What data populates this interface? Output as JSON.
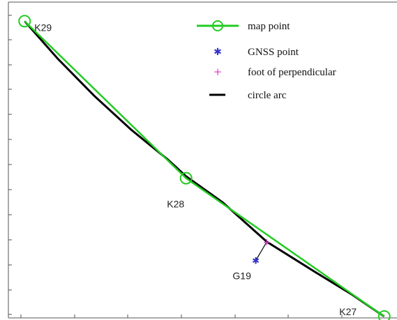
{
  "chart_data": {
    "type": "line",
    "title": "",
    "xlabel": "",
    "ylabel": "",
    "grid": false,
    "legend_position": "top-right",
    "xlim": [
      0,
      100
    ],
    "ylim": [
      0,
      80
    ],
    "series": [
      {
        "name": "map point",
        "color": "#22cc22",
        "marker": "circle",
        "points": [
          {
            "x": 1,
            "y": 79,
            "label": "K29"
          },
          {
            "x": 45,
            "y": 37,
            "label": "K28"
          },
          {
            "x": 99,
            "y": 0,
            "label": "K27"
          }
        ]
      },
      {
        "name": "GNSS point",
        "color": "#3333cc",
        "marker": "star",
        "points": [
          {
            "x": 64,
            "y": 15,
            "label": "G19"
          }
        ]
      },
      {
        "name": "foot of perpendicular",
        "color": "#dd44cc",
        "marker": "plus",
        "points": [
          {
            "x": 67,
            "y": 20
          }
        ]
      },
      {
        "name": "circle arc",
        "color": "#000000",
        "marker": "none",
        "points": [
          {
            "x": 1,
            "y": 79
          },
          {
            "x": 10,
            "y": 69
          },
          {
            "x": 20,
            "y": 59
          },
          {
            "x": 30,
            "y": 50
          },
          {
            "x": 40,
            "y": 42
          },
          {
            "x": 45,
            "y": 37.5
          },
          {
            "x": 55,
            "y": 30.5
          },
          {
            "x": 67,
            "y": 20
          },
          {
            "x": 80,
            "y": 12
          },
          {
            "x": 90,
            "y": 6
          },
          {
            "x": 99,
            "y": 0
          }
        ]
      }
    ]
  }
}
